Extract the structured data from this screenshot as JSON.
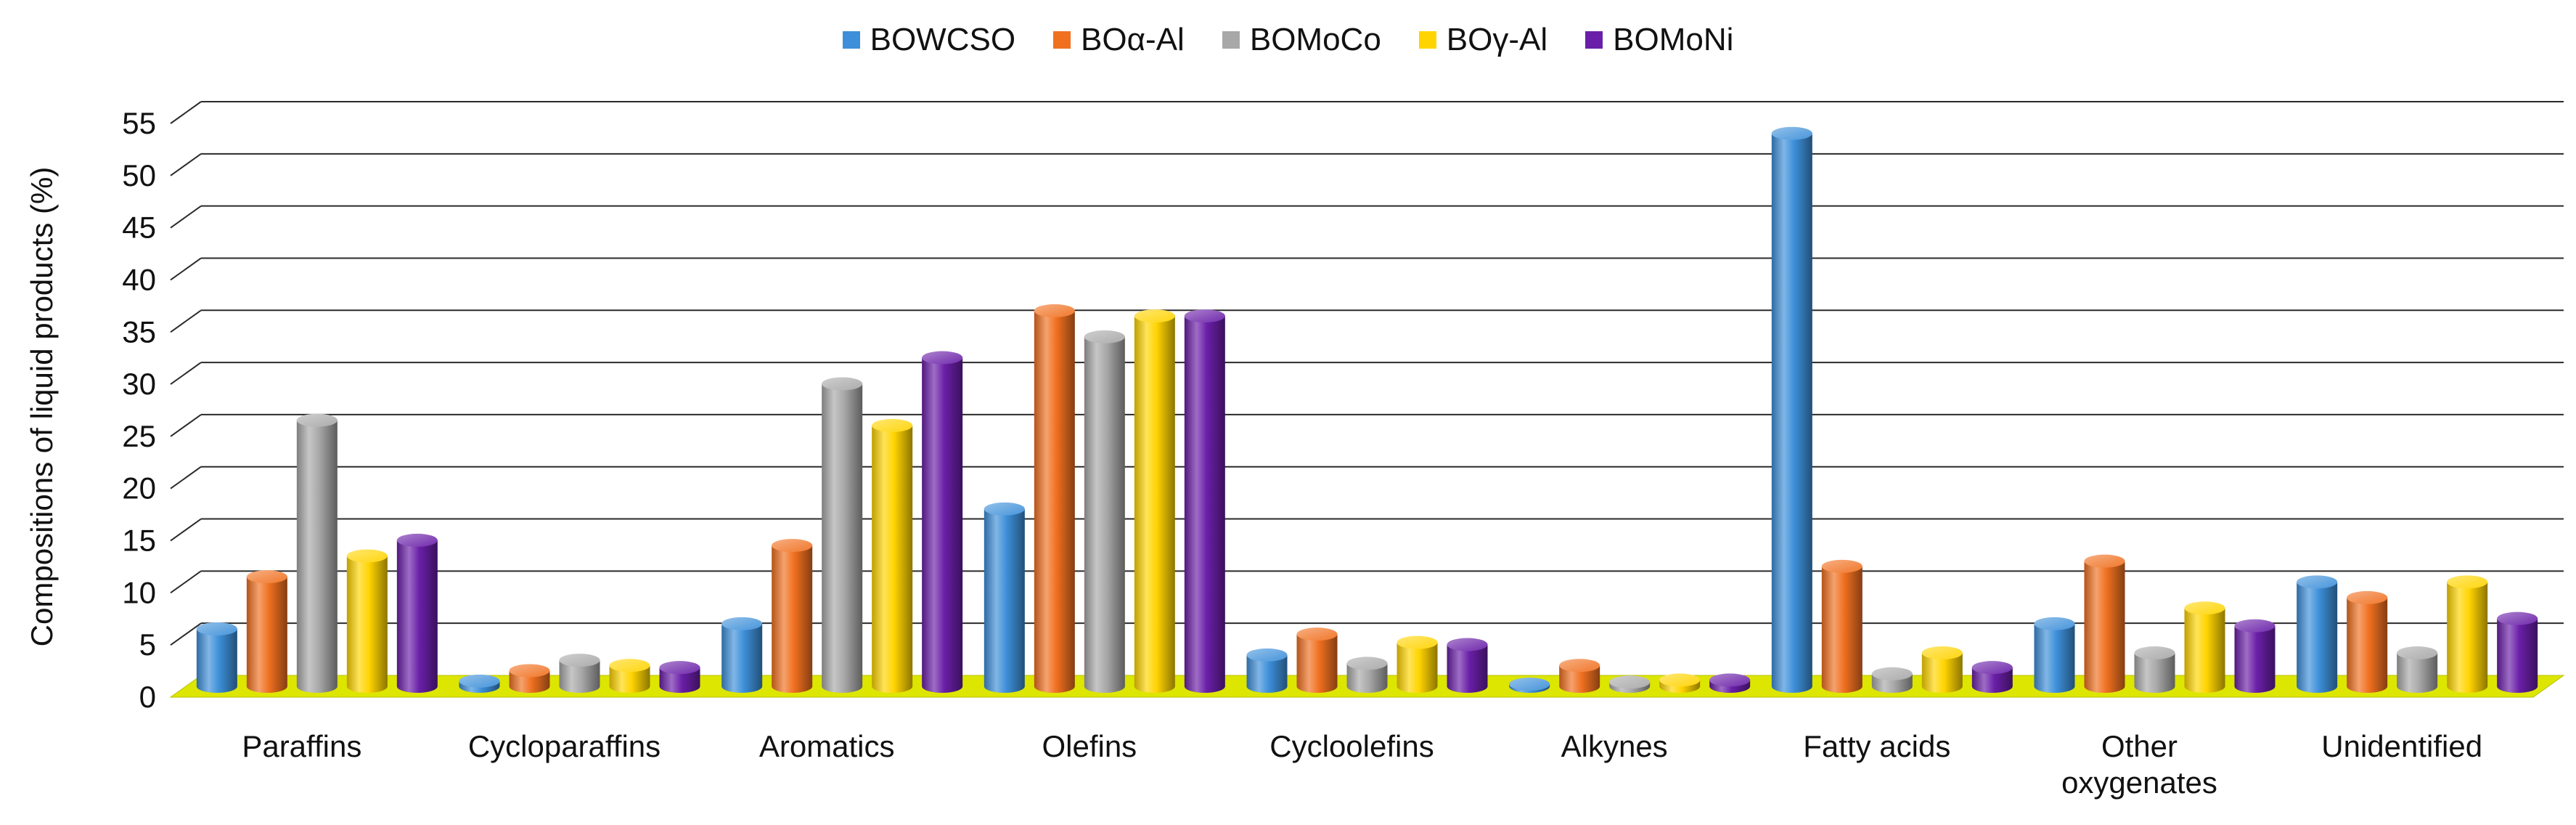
{
  "chart_data": {
    "type": "bar",
    "style": "3d-cylinder",
    "title": "",
    "xlabel": "",
    "ylabel": "Compositions of liquid products (%)",
    "ylim": [
      0,
      55
    ],
    "yticks": [
      0,
      5,
      10,
      15,
      20,
      25,
      30,
      35,
      40,
      45,
      50,
      55
    ],
    "ytick_labels": [
      "0",
      "5",
      "10",
      "15",
      "20",
      "25",
      "30",
      "35",
      "40",
      "45",
      "50",
      "55"
    ],
    "grid": true,
    "legend_position": "top-center",
    "categories": [
      "Paraffins",
      "Cycloparaffins",
      "Aromatics",
      "Olefins",
      "Cycloolefins",
      "Alkynes",
      "Fatty acids",
      "Other oxygenates",
      "Unidentified"
    ],
    "category_lines": [
      [
        "Paraffins"
      ],
      [
        "Cycloparaffins"
      ],
      [
        "Aromatics"
      ],
      [
        "Olefins"
      ],
      [
        "Cycloolefins"
      ],
      [
        "Alkynes"
      ],
      [
        "Fatty acids"
      ],
      [
        "Other",
        "oxygenates"
      ],
      [
        "Unidentified"
      ]
    ],
    "series": [
      {
        "name": "BOWCSO",
        "color": "#3d8fd9",
        "values": [
          5.5,
          0.5,
          6.0,
          17.0,
          3.0,
          0.2,
          53.0,
          6.0,
          10.0
        ]
      },
      {
        "name": "BOα-Al",
        "color": "#f07020",
        "values": [
          10.5,
          1.5,
          13.5,
          36.0,
          5.0,
          2.0,
          11.5,
          12.0,
          8.5
        ]
      },
      {
        "name": "BOMoCo",
        "color": "#a8a8a8",
        "values": [
          25.5,
          2.5,
          29.0,
          33.5,
          2.2,
          0.4,
          1.2,
          3.2,
          3.2
        ]
      },
      {
        "name": "BOγ-Al",
        "color": "#ffd400",
        "values": [
          12.5,
          2.0,
          25.0,
          35.5,
          4.2,
          0.6,
          3.2,
          7.5,
          10.0
        ]
      },
      {
        "name": "BOMoNi",
        "color": "#6a1fa8",
        "values": [
          14.0,
          1.8,
          31.5,
          35.5,
          4.0,
          0.6,
          1.8,
          5.8,
          6.5
        ]
      }
    ]
  }
}
